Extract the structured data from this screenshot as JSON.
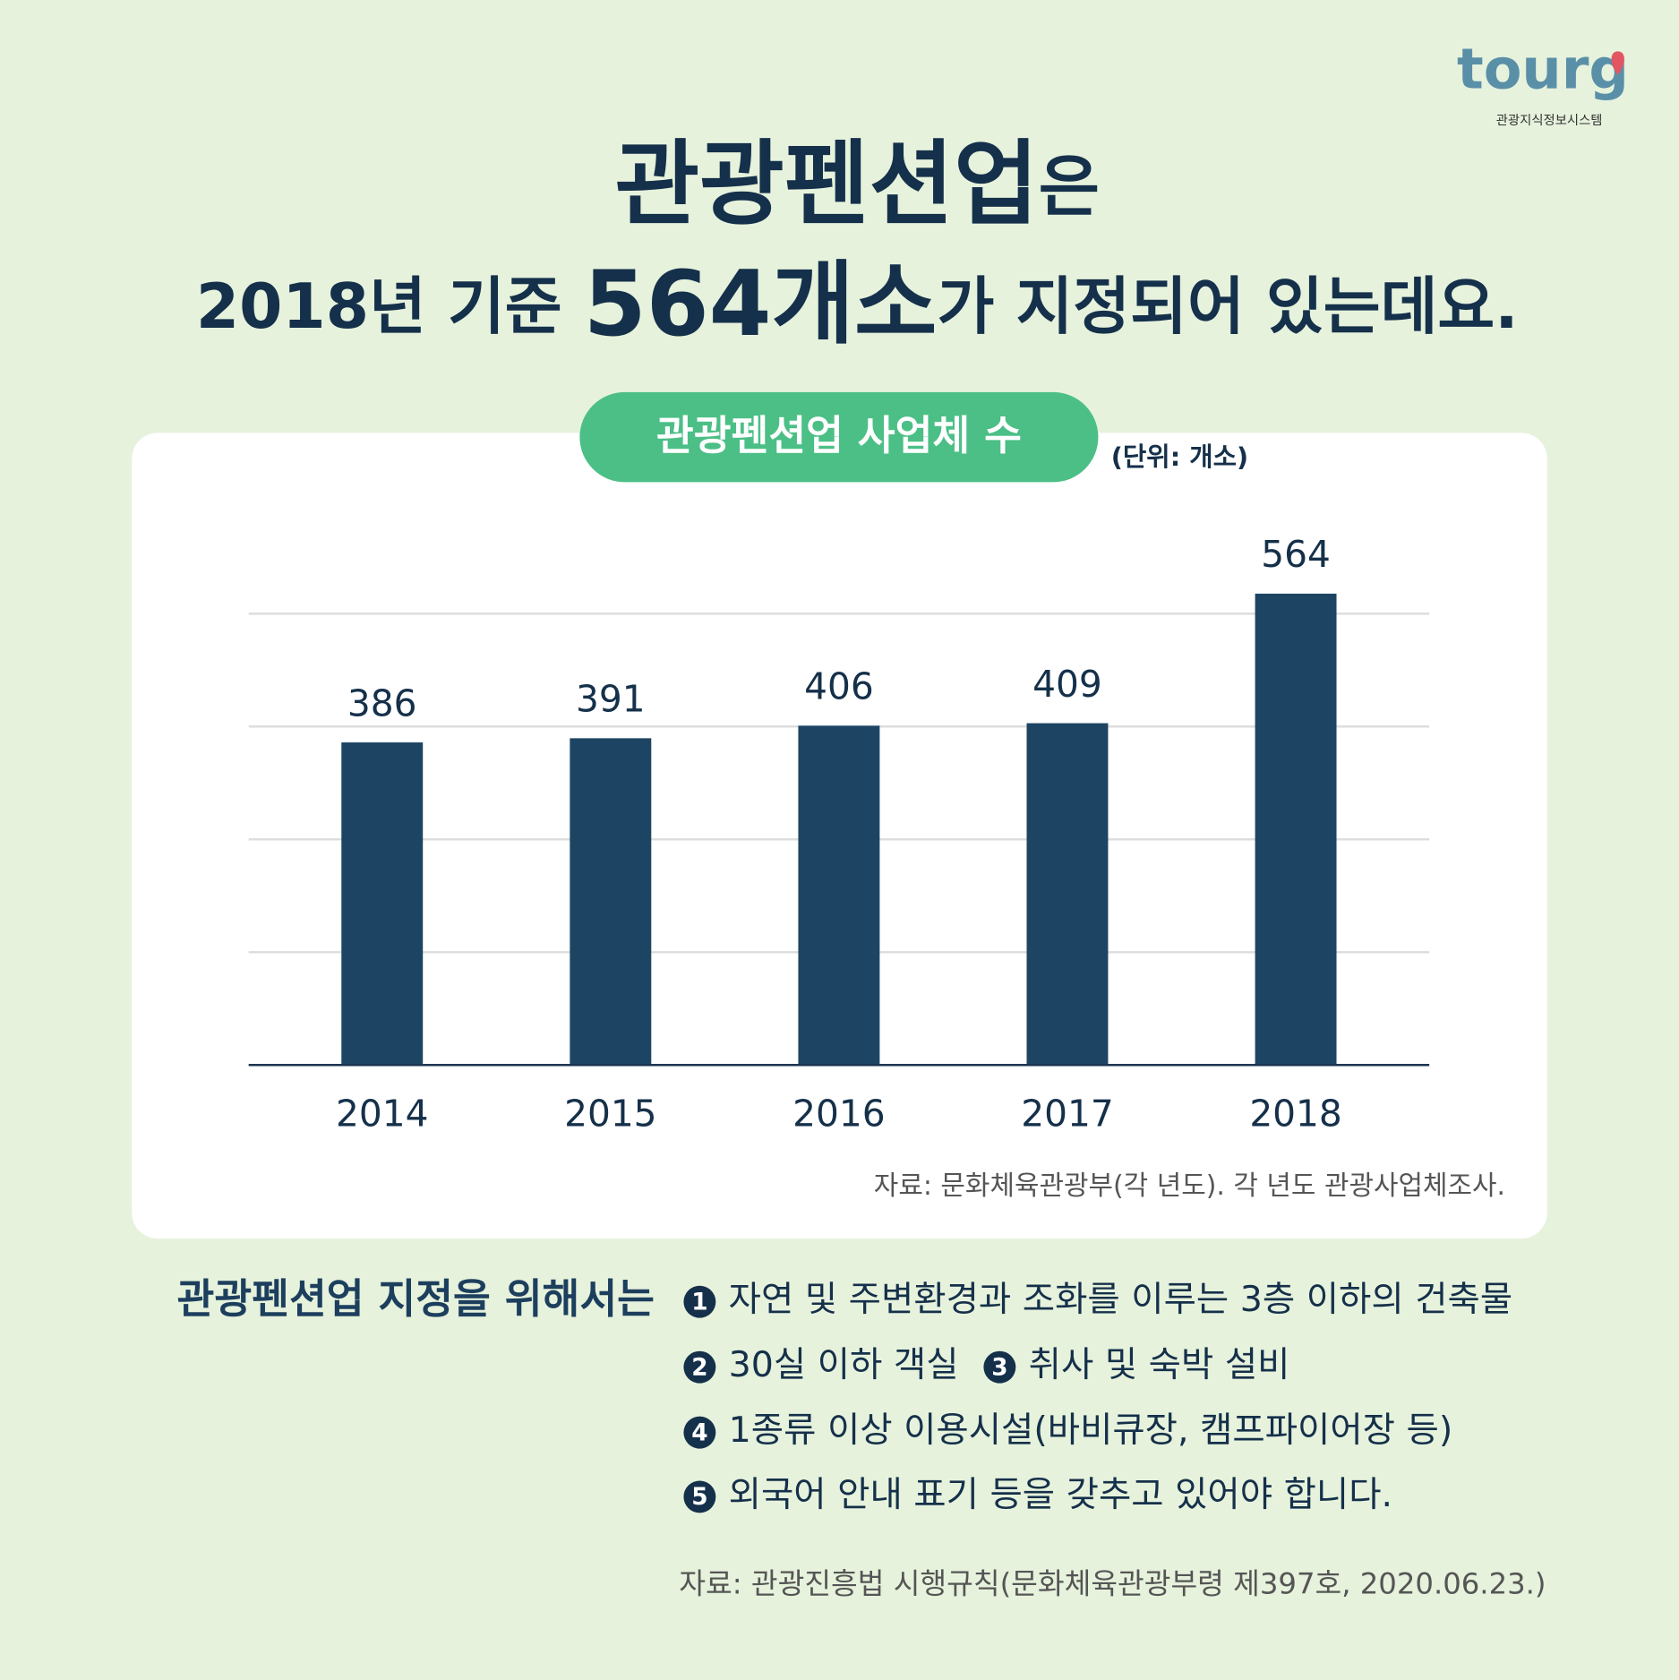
{
  "logo": {
    "name": "tourg",
    "subtitle": "관광지식정보시스템"
  },
  "headline": {
    "line1": [
      "관광펜션업",
      "은"
    ],
    "line2": [
      "2018년 기준 ",
      "564개소",
      "가 지정되어 있는데요."
    ]
  },
  "chart_data": {
    "type": "bar",
    "title": "관광펜션업 사업체 수",
    "unit": "(단위: 개소)",
    "categories": [
      "2014",
      "2015",
      "2016",
      "2017",
      "2018"
    ],
    "values": [
      386,
      391,
      406,
      409,
      564
    ],
    "color": "#1d4563",
    "ylim": [
      0,
      600
    ],
    "yticks": [
      135,
      270,
      405,
      540
    ],
    "grid": true,
    "source": "자료: 문화체육관광부(각 년도). 각 년도 관광사업체조사."
  },
  "requirements": {
    "lead": "관광펜션업 지정을 위해서는",
    "markers": [
      "1",
      "2",
      "3",
      "4",
      "5"
    ],
    "items": [
      "자연 및 주변환경과 조화를 이루는 3층 이하의 건축물",
      "30실 이하 객실",
      "취사 및 숙박 설비",
      "1종류 이상 이용시설(바비큐장, 캠프파이어장 등)",
      "외국어 안내 표기 등을 갖추고 있어야 합니다."
    ]
  },
  "source": "자료: 관광진흥법 시행규칙(문화체육관광부령 제397호, 2020.06.23.)"
}
